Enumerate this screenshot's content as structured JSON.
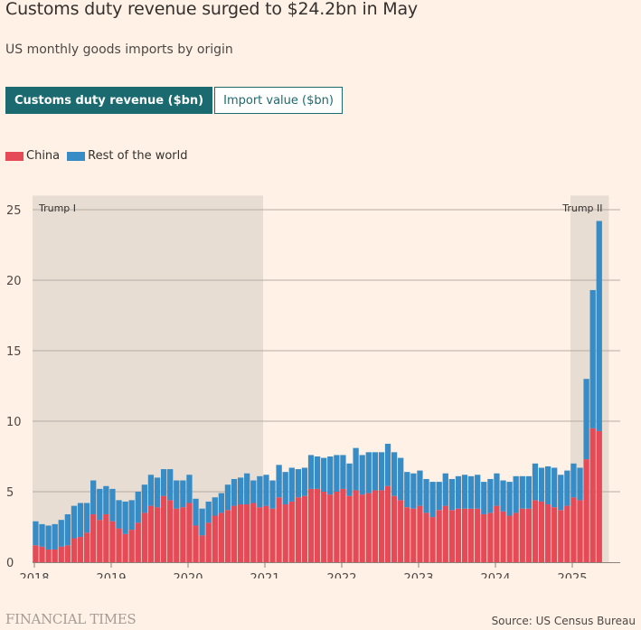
{
  "header": {
    "title": "Customs duty revenue surged to $24.2bn in May",
    "subtitle": "US monthly goods imports by origin"
  },
  "toggles": [
    {
      "label": "Customs duty revenue ($bn)",
      "active": true
    },
    {
      "label": "Import value ($bn)",
      "active": false
    }
  ],
  "footer": {
    "logo": "FINANCIAL TIMES",
    "source": "Source: US Census Bureau"
  },
  "colors": {
    "china": "#e54a57",
    "rest": "#378cc6",
    "shade": "#e8ddd3",
    "grid": "#b5aca5",
    "background": "#fff1e5",
    "accent": "#1a6a70"
  },
  "chart_data": {
    "type": "bar",
    "stacked": true,
    "title": "Customs duty revenue surged to $24.2bn in May",
    "subtitle": "US monthly goods imports by origin",
    "xlabel": "",
    "ylabel": "Customs duty revenue ($bn)",
    "ylim": [
      0,
      26
    ],
    "yticks": [
      0,
      5,
      10,
      15,
      20,
      25
    ],
    "xticks": [
      "2018",
      "2019",
      "2020",
      "2021",
      "2022",
      "2023",
      "2024",
      "2025"
    ],
    "grid": true,
    "legend": {
      "position": "top-left",
      "entries": [
        "China",
        "Rest of the world"
      ]
    },
    "start": "2018-01",
    "frequency": "monthly",
    "annotations": [
      {
        "label": "Trump I",
        "from": "2017-12",
        "to": "2021-01"
      },
      {
        "label": "Trump II",
        "from": "2025-01",
        "to": "2025-07"
      }
    ],
    "series": [
      {
        "name": "China",
        "values": [
          1.2,
          1.1,
          0.9,
          0.9,
          1.1,
          1.2,
          1.7,
          1.8,
          2.1,
          3.4,
          3.0,
          3.4,
          2.9,
          2.4,
          2.0,
          2.3,
          2.8,
          3.5,
          4.0,
          3.9,
          4.7,
          4.4,
          3.8,
          3.9,
          4.2,
          2.6,
          1.9,
          2.8,
          3.3,
          3.5,
          3.7,
          4.0,
          4.1,
          4.1,
          4.2,
          3.9,
          4.0,
          3.8,
          4.6,
          4.1,
          4.3,
          4.6,
          4.7,
          5.2,
          5.2,
          5.0,
          4.8,
          5.0,
          5.2,
          4.7,
          5.1,
          4.8,
          4.9,
          5.1,
          5.1,
          5.4,
          4.7,
          4.4,
          3.9,
          3.8,
          4.0,
          3.5,
          3.2,
          3.7,
          4.0,
          3.7,
          3.8,
          3.8,
          3.8,
          3.8,
          3.4,
          3.5,
          4.0,
          3.6,
          3.3,
          3.5,
          3.8,
          3.8,
          4.4,
          4.3,
          4.1,
          3.9,
          3.7,
          4.0,
          4.6,
          4.4,
          7.3,
          9.5,
          9.3
        ]
      },
      {
        "name": "Rest of the world",
        "values": [
          1.7,
          1.6,
          1.7,
          1.8,
          1.9,
          2.2,
          2.3,
          2.4,
          2.1,
          2.4,
          2.2,
          2.0,
          2.3,
          2.0,
          2.3,
          2.1,
          2.2,
          2.0,
          2.2,
          2.1,
          1.9,
          2.2,
          2.0,
          1.9,
          2.0,
          1.9,
          1.9,
          1.5,
          1.3,
          1.4,
          1.8,
          1.9,
          1.9,
          2.2,
          1.6,
          2.2,
          2.2,
          2.0,
          2.3,
          2.3,
          2.4,
          2.0,
          2.0,
          2.4,
          2.3,
          2.4,
          2.7,
          2.6,
          2.4,
          2.3,
          3.0,
          2.8,
          2.9,
          2.7,
          2.7,
          3.0,
          3.1,
          3.0,
          2.5,
          2.5,
          2.5,
          2.4,
          2.5,
          2.0,
          2.3,
          2.2,
          2.3,
          2.4,
          2.3,
          2.4,
          2.3,
          2.4,
          2.3,
          2.2,
          2.4,
          2.6,
          2.3,
          2.3,
          2.6,
          2.4,
          2.7,
          2.8,
          2.5,
          2.5,
          2.4,
          2.3,
          5.7,
          9.8,
          14.9
        ]
      }
    ]
  }
}
